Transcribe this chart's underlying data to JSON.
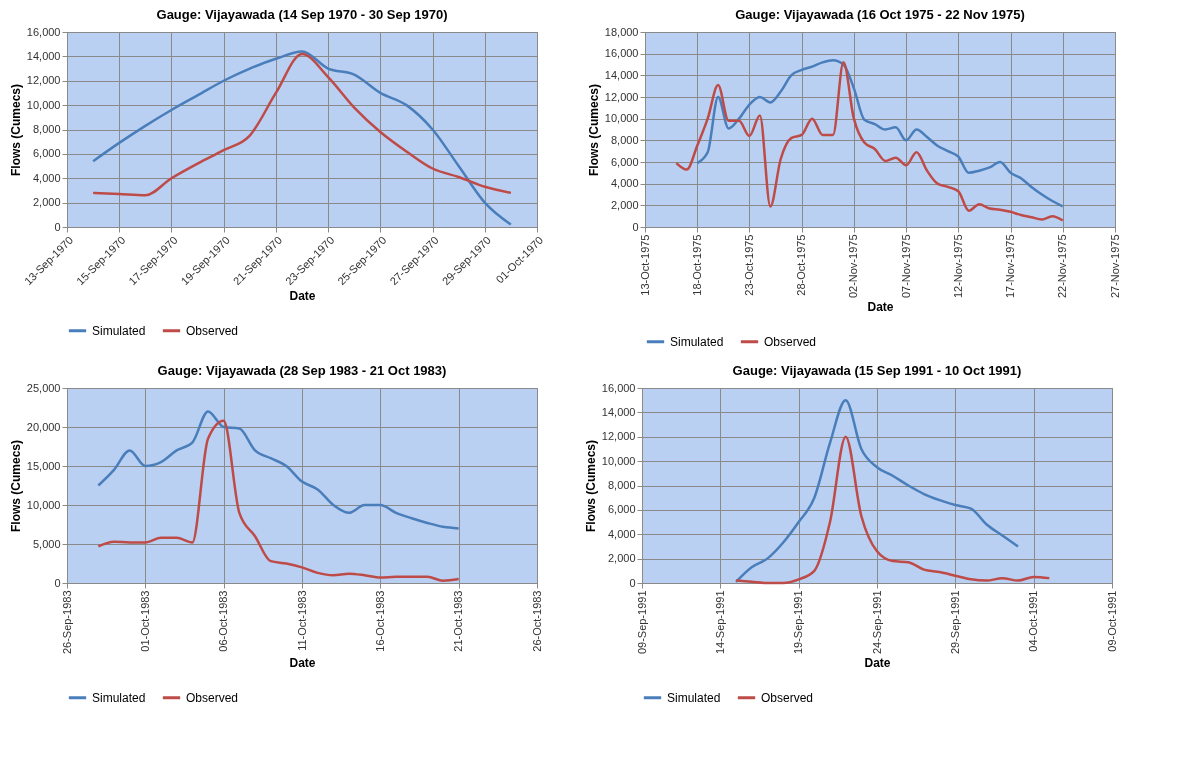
{
  "chart_data": [
    {
      "type": "line",
      "title": "Gauge: Vijayawada (14 Sep 1970 - 30 Sep 1970)",
      "xlabel": "Date",
      "ylabel": "Flows (Cumecs)",
      "xlim": [
        "1970-09-13",
        "1970-10-01"
      ],
      "xticks": [
        {
          "value": "1970-09-13",
          "label": "13-Sep-1970"
        },
        {
          "value": "1970-09-15",
          "label": "15-Sep-1970"
        },
        {
          "value": "1970-09-17",
          "label": "17-Sep-1970"
        },
        {
          "value": "1970-09-19",
          "label": "19-Sep-1970"
        },
        {
          "value": "1970-09-21",
          "label": "21-Sep-1970"
        },
        {
          "value": "1970-09-23",
          "label": "23-Sep-1970"
        },
        {
          "value": "1970-09-25",
          "label": "25-Sep-1970"
        },
        {
          "value": "1970-09-27",
          "label": "27-Sep-1970"
        },
        {
          "value": "1970-09-29",
          "label": "29-Sep-1970"
        },
        {
          "value": "1970-10-01",
          "label": "01-Oct-1970"
        }
      ],
      "ylim": [
        0,
        16000
      ],
      "yticks": [
        {
          "value": 0,
          "label": "0"
        },
        {
          "value": 2000,
          "label": "2,000"
        },
        {
          "value": 4000,
          "label": "4,000"
        },
        {
          "value": 6000,
          "label": "6,000"
        },
        {
          "value": 8000,
          "label": "8,000"
        },
        {
          "value": 10000,
          "label": "10,000"
        },
        {
          "value": 12000,
          "label": "12,000"
        },
        {
          "value": 14000,
          "label": "14,000"
        },
        {
          "value": 16000,
          "label": "16,000"
        }
      ],
      "grid": true,
      "legend": "bottom",
      "series": [
        {
          "name": "Simulated",
          "color": "#4a7ebb",
          "x": [
            "1970-09-14",
            "1970-09-15",
            "1970-09-16",
            "1970-09-17",
            "1970-09-18",
            "1970-09-19",
            "1970-09-20",
            "1970-09-21",
            "1970-09-22",
            "1970-09-23",
            "1970-09-24",
            "1970-09-25",
            "1970-09-26",
            "1970-09-27",
            "1970-09-28",
            "1970-09-29",
            "1970-09-30"
          ],
          "values": [
            5400,
            6900,
            8300,
            9600,
            10800,
            12000,
            13000,
            13800,
            14400,
            13000,
            12500,
            11000,
            10000,
            8000,
            5000,
            2000,
            200
          ]
        },
        {
          "name": "Observed",
          "color": "#be4b48",
          "x": [
            "1970-09-14",
            "1970-09-15",
            "1970-09-16",
            "1970-09-17",
            "1970-09-18",
            "1970-09-19",
            "1970-09-20",
            "1970-09-21",
            "1970-09-22",
            "1970-09-23",
            "1970-09-24",
            "1970-09-25",
            "1970-09-26",
            "1970-09-27",
            "1970-09-28",
            "1970-09-29",
            "1970-09-30"
          ],
          "values": [
            2800,
            2700,
            2600,
            4000,
            5200,
            6300,
            7500,
            11000,
            14200,
            12300,
            9800,
            7800,
            6200,
            4800,
            4100,
            3300,
            2800
          ]
        }
      ]
    },
    {
      "type": "line",
      "title": "Gauge: Vijayawada (16 Oct 1975 - 22 Nov 1975)",
      "xlabel": "Date",
      "ylabel": "Flows (Cumecs)",
      "xlim": [
        "1975-10-13",
        "1975-11-27"
      ],
      "xticks": [
        {
          "value": "1975-10-13",
          "label": "13-Oct-1975"
        },
        {
          "value": "1975-10-18",
          "label": "18-Oct-1975"
        },
        {
          "value": "1975-10-23",
          "label": "23-Oct-1975"
        },
        {
          "value": "1975-10-28",
          "label": "28-Oct-1975"
        },
        {
          "value": "1975-11-02",
          "label": "02-Nov-1975"
        },
        {
          "value": "1975-11-07",
          "label": "07-Nov-1975"
        },
        {
          "value": "1975-11-12",
          "label": "12-Nov-1975"
        },
        {
          "value": "1975-11-17",
          "label": "17-Nov-1975"
        },
        {
          "value": "1975-11-22",
          "label": "22-Nov-1975"
        },
        {
          "value": "1975-11-27",
          "label": "27-Nov-1975"
        }
      ],
      "ylim": [
        0,
        18000
      ],
      "yticks": [
        {
          "value": 0,
          "label": "0"
        },
        {
          "value": 2000,
          "label": "2,000"
        },
        {
          "value": 4000,
          "label": "4,000"
        },
        {
          "value": 6000,
          "label": "6,000"
        },
        {
          "value": 8000,
          "label": "8,000"
        },
        {
          "value": 10000,
          "label": "10,000"
        },
        {
          "value": 12000,
          "label": "12,000"
        },
        {
          "value": 14000,
          "label": "14,000"
        },
        {
          "value": 16000,
          "label": "16,000"
        },
        {
          "value": 18000,
          "label": "18,000"
        }
      ],
      "grid": true,
      "legend": "bottom",
      "series": [
        {
          "name": "Simulated",
          "color": "#4a7ebb",
          "x": [
            "1975-10-18",
            "1975-10-19",
            "1975-10-20",
            "1975-10-21",
            "1975-10-22",
            "1975-10-23",
            "1975-10-24",
            "1975-10-25",
            "1975-10-26",
            "1975-10-27",
            "1975-10-28",
            "1975-10-29",
            "1975-10-30",
            "1975-10-31",
            "1975-11-01",
            "1975-11-02",
            "1975-11-03",
            "1975-11-04",
            "1975-11-05",
            "1975-11-06",
            "1975-11-07",
            "1975-11-08",
            "1975-11-09",
            "1975-11-10",
            "1975-11-11",
            "1975-11-12",
            "1975-11-13",
            "1975-11-14",
            "1975-11-15",
            "1975-11-16",
            "1975-11-17",
            "1975-11-18",
            "1975-11-19",
            "1975-11-20",
            "1975-11-21",
            "1975-11-22"
          ],
          "values": [
            5900,
            6900,
            12000,
            9100,
            10000,
            11300,
            12000,
            11500,
            12500,
            14000,
            14500,
            14800,
            15200,
            15400,
            15000,
            12800,
            9900,
            9500,
            9000,
            9200,
            8000,
            9000,
            8300,
            7500,
            7000,
            6500,
            5000,
            5200,
            5500,
            6000,
            5000,
            4500,
            3700,
            3000,
            2400,
            1900
          ]
        },
        {
          "name": "Observed",
          "color": "#be4b48",
          "x": [
            "1975-10-16",
            "1975-10-17",
            "1975-10-18",
            "1975-10-19",
            "1975-10-20",
            "1975-10-21",
            "1975-10-22",
            "1975-10-23",
            "1975-10-24",
            "1975-10-25",
            "1975-10-26",
            "1975-10-27",
            "1975-10-28",
            "1975-10-29",
            "1975-10-30",
            "1975-10-31",
            "1975-11-01",
            "1975-11-02",
            "1975-11-03",
            "1975-11-04",
            "1975-11-05",
            "1975-11-06",
            "1975-11-07",
            "1975-11-08",
            "1975-11-09",
            "1975-11-10",
            "1975-11-11",
            "1975-11-12",
            "1975-11-13",
            "1975-11-14",
            "1975-11-15",
            "1975-11-16",
            "1975-11-17",
            "1975-11-18",
            "1975-11-19",
            "1975-11-20",
            "1975-11-21",
            "1975-11-22"
          ],
          "values": [
            5900,
            5300,
            7500,
            10000,
            13100,
            9800,
            9800,
            8400,
            10300,
            1900,
            6300,
            8200,
            8500,
            10000,
            8500,
            8500,
            15200,
            10000,
            7800,
            7200,
            6100,
            6400,
            5700,
            6900,
            5200,
            4000,
            3700,
            3300,
            1500,
            2100,
            1700,
            1600,
            1400,
            1100,
            900,
            700,
            1000,
            600
          ]
        }
      ]
    },
    {
      "type": "line",
      "title": "Gauge: Vijayawada (28 Sep 1983 - 21 Oct 1983)",
      "xlabel": "Date",
      "ylabel": "Flows (Cumecs)",
      "xlim": [
        "1983-09-26",
        "1983-10-26"
      ],
      "xticks": [
        {
          "value": "1983-09-26",
          "label": "26-Sep-1983"
        },
        {
          "value": "1983-10-01",
          "label": "01-Oct-1983"
        },
        {
          "value": "1983-10-06",
          "label": "06-Oct-1983"
        },
        {
          "value": "1983-10-11",
          "label": "11-Oct-1983"
        },
        {
          "value": "1983-10-16",
          "label": "16-Oct-1983"
        },
        {
          "value": "1983-10-21",
          "label": "21-Oct-1983"
        },
        {
          "value": "1983-10-26",
          "label": "26-Oct-1983"
        }
      ],
      "ylim": [
        0,
        25000
      ],
      "yticks": [
        {
          "value": 0,
          "label": "0"
        },
        {
          "value": 5000,
          "label": "5,000"
        },
        {
          "value": 10000,
          "label": "10,000"
        },
        {
          "value": 15000,
          "label": "15,000"
        },
        {
          "value": 20000,
          "label": "20,000"
        },
        {
          "value": 25000,
          "label": "25,000"
        }
      ],
      "grid": true,
      "legend": "bottom",
      "series": [
        {
          "name": "Simulated",
          "color": "#4a7ebb",
          "x": [
            "1983-09-28",
            "1983-09-29",
            "1983-09-30",
            "1983-10-01",
            "1983-10-02",
            "1983-10-03",
            "1983-10-04",
            "1983-10-05",
            "1983-10-06",
            "1983-10-07",
            "1983-10-08",
            "1983-10-09",
            "1983-10-10",
            "1983-10-11",
            "1983-10-12",
            "1983-10-13",
            "1983-10-14",
            "1983-10-15",
            "1983-10-16",
            "1983-10-17",
            "1983-10-18",
            "1983-10-19",
            "1983-10-20",
            "1983-10-21"
          ],
          "values": [
            12500,
            14500,
            17000,
            15000,
            15500,
            17000,
            18000,
            22000,
            20000,
            19800,
            17000,
            16000,
            15000,
            13000,
            12000,
            10000,
            9000,
            10000,
            10000,
            9000,
            8300,
            7700,
            7200,
            7000
          ]
        },
        {
          "name": "Observed",
          "color": "#be4b48",
          "x": [
            "1983-09-28",
            "1983-09-29",
            "1983-09-30",
            "1983-10-01",
            "1983-10-02",
            "1983-10-03",
            "1983-10-04",
            "1983-10-05",
            "1983-10-06",
            "1983-10-07",
            "1983-10-08",
            "1983-10-09",
            "1983-10-10",
            "1983-10-11",
            "1983-10-12",
            "1983-10-13",
            "1983-10-14",
            "1983-10-15",
            "1983-10-16",
            "1983-10-17",
            "1983-10-18",
            "1983-10-19",
            "1983-10-20",
            "1983-10-21"
          ],
          "values": [
            4700,
            5300,
            5200,
            5200,
            5800,
            5800,
            5200,
            18500,
            20800,
            9000,
            6000,
            2800,
            2500,
            2000,
            1300,
            1000,
            1200,
            1000,
            700,
            800,
            800,
            800,
            300,
            500
          ]
        }
      ]
    },
    {
      "type": "line",
      "title": "Gauge: Vijayawada (15 Sep 1991 - 10 Oct 1991)",
      "xlabel": "Date",
      "ylabel": "Flows (Cumecs)",
      "xlim": [
        "1991-09-09",
        "1991-10-09"
      ],
      "xticks": [
        {
          "value": "1991-09-09",
          "label": "09-Sep-1991"
        },
        {
          "value": "1991-09-14",
          "label": "14-Sep-1991"
        },
        {
          "value": "1991-09-19",
          "label": "19-Sep-1991"
        },
        {
          "value": "1991-09-24",
          "label": "24-Sep-1991"
        },
        {
          "value": "1991-09-29",
          "label": "29-Sep-1991"
        },
        {
          "value": "1991-10-04",
          "label": "04-Oct-1991"
        },
        {
          "value": "1991-10-09",
          "label": "09-Oct-1991"
        }
      ],
      "ylim": [
        0,
        16000
      ],
      "yticks": [
        {
          "value": 0,
          "label": "0"
        },
        {
          "value": 2000,
          "label": "2,000"
        },
        {
          "value": 4000,
          "label": "4,000"
        },
        {
          "value": 6000,
          "label": "6,000"
        },
        {
          "value": 8000,
          "label": "8,000"
        },
        {
          "value": 10000,
          "label": "10,000"
        },
        {
          "value": 12000,
          "label": "12,000"
        },
        {
          "value": 14000,
          "label": "14,000"
        },
        {
          "value": 16000,
          "label": "16,000"
        }
      ],
      "grid": true,
      "legend": "bottom",
      "series": [
        {
          "name": "Simulated",
          "color": "#4a7ebb",
          "x": [
            "1991-09-15",
            "1991-09-16",
            "1991-09-17",
            "1991-09-18",
            "1991-09-19",
            "1991-09-20",
            "1991-09-21",
            "1991-09-22",
            "1991-09-23",
            "1991-09-24",
            "1991-09-25",
            "1991-09-26",
            "1991-09-27",
            "1991-09-28",
            "1991-09-29",
            "1991-09-30",
            "1991-10-01",
            "1991-10-02",
            "1991-10-03"
          ],
          "values": [
            100,
            1300,
            2000,
            3300,
            5000,
            7000,
            11500,
            15000,
            11000,
            9500,
            8800,
            8000,
            7300,
            6800,
            6400,
            6100,
            4800,
            3900,
            3000
          ]
        },
        {
          "name": "Observed",
          "color": "#be4b48",
          "x": [
            "1991-09-15",
            "1991-09-16",
            "1991-09-17",
            "1991-09-18",
            "1991-09-19",
            "1991-09-20",
            "1991-09-21",
            "1991-09-22",
            "1991-09-23",
            "1991-09-24",
            "1991-09-25",
            "1991-09-26",
            "1991-09-27",
            "1991-09-28",
            "1991-09-29",
            "1991-09-30",
            "1991-10-01",
            "1991-10-02",
            "1991-10-03",
            "1991-10-04",
            "1991-10-05"
          ],
          "values": [
            200,
            100,
            0,
            0,
            300,
            1000,
            5000,
            12000,
            5500,
            2600,
            1800,
            1700,
            1100,
            900,
            600,
            300,
            200,
            400,
            200,
            500,
            400
          ]
        }
      ]
    }
  ]
}
